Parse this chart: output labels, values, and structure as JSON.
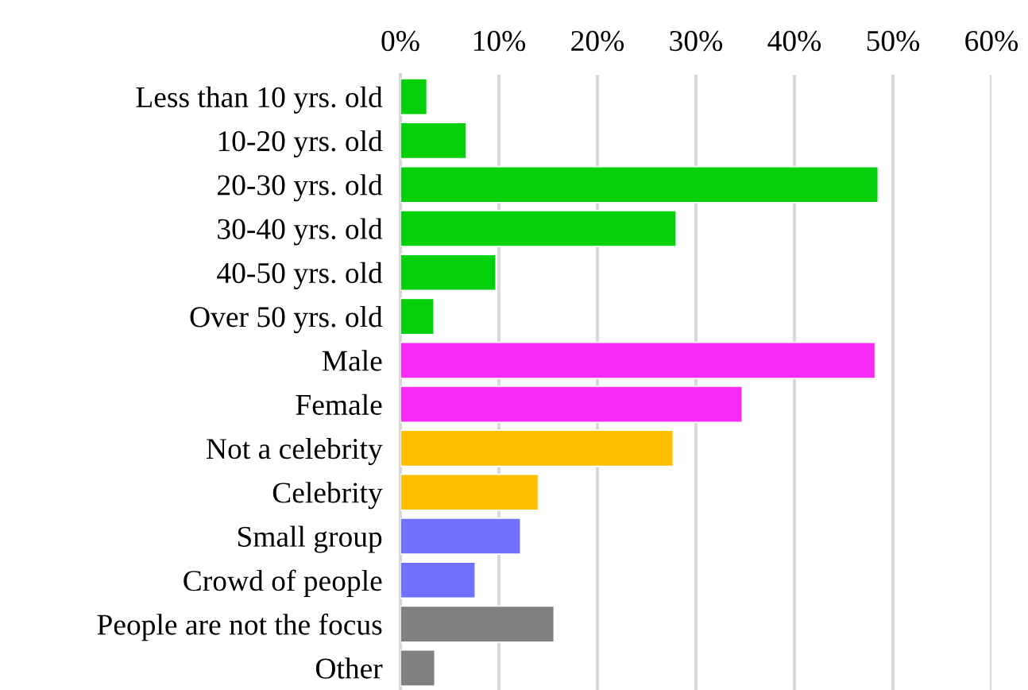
{
  "chart_data": {
    "type": "bar",
    "orientation": "horizontal",
    "categories": [
      "Less than 10 yrs. old",
      "10-20 yrs. old",
      "20-30 yrs. old",
      "30-40 yrs. old",
      "40-50 yrs. old",
      "Over 50 yrs. old",
      "Male",
      "Female",
      "Not a celebrity",
      "Celebrity",
      "Small group",
      "Crowd of people",
      "People are not the focus",
      "Other"
    ],
    "values": [
      2.7,
      6.7,
      48.5,
      28.0,
      9.7,
      3.4,
      48.2,
      34.7,
      27.7,
      14.0,
      12.2,
      7.6,
      15.6,
      3.5
    ],
    "colors": [
      "#04d10b",
      "#04d10b",
      "#04d10b",
      "#04d10b",
      "#04d10b",
      "#04d10b",
      "#f72af7",
      "#f72af7",
      "#ffbf00",
      "#ffbf00",
      "#7070ff",
      "#7070ff",
      "#808080",
      "#808080"
    ],
    "xlim": [
      0,
      60
    ],
    "xticks": [
      {
        "value": 0,
        "label": "0%"
      },
      {
        "value": 10,
        "label": "10%"
      },
      {
        "value": 20,
        "label": "20%"
      },
      {
        "value": 30,
        "label": "30%"
      },
      {
        "value": 40,
        "label": "40%"
      },
      {
        "value": 50,
        "label": "50%"
      },
      {
        "value": 60,
        "label": "60%"
      }
    ],
    "grid": "x"
  }
}
